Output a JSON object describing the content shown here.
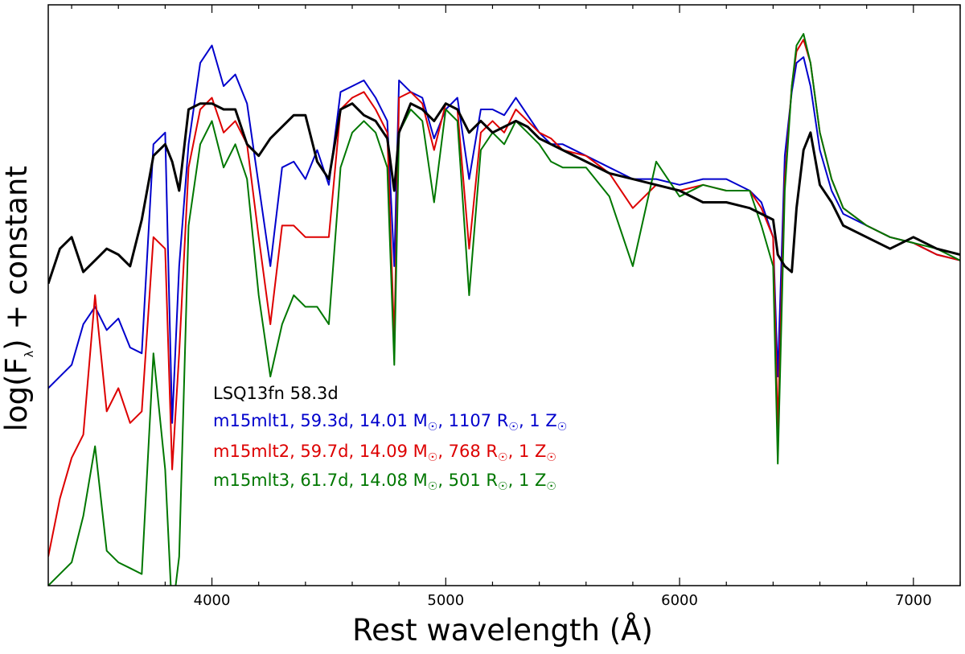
{
  "chart_data": {
    "type": "line",
    "xlabel": "Rest wavelength (Å)",
    "ylabel": "log(Fλ) + constant",
    "xlim": [
      3300,
      7200
    ],
    "ylim": [
      0,
      1
    ],
    "x_ticks": [
      "4000",
      "5000",
      "6000",
      "7000"
    ],
    "series": [
      {
        "name": "LSQ13fn 58.3d",
        "color": "#000000",
        "x": [
          3300,
          3350,
          3400,
          3450,
          3500,
          3550,
          3600,
          3650,
          3700,
          3750,
          3800,
          3830,
          3860,
          3900,
          3950,
          4000,
          4050,
          4100,
          4150,
          4200,
          4250,
          4300,
          4350,
          4400,
          4450,
          4500,
          4550,
          4600,
          4650,
          4700,
          4750,
          4780,
          4800,
          4850,
          4900,
          4950,
          5000,
          5050,
          5100,
          5150,
          5200,
          5250,
          5300,
          5350,
          5400,
          5450,
          5500,
          5600,
          5700,
          5800,
          5900,
          6000,
          6100,
          6200,
          6300,
          6350,
          6400,
          6420,
          6450,
          6480,
          6500,
          6530,
          6560,
          6600,
          6650,
          6700,
          6800,
          6900,
          7000,
          7100,
          7200
        ],
        "y": [
          0.52,
          0.58,
          0.6,
          0.54,
          0.56,
          0.58,
          0.57,
          0.55,
          0.63,
          0.74,
          0.76,
          0.73,
          0.68,
          0.82,
          0.83,
          0.83,
          0.82,
          0.82,
          0.76,
          0.74,
          0.77,
          0.79,
          0.81,
          0.81,
          0.73,
          0.7,
          0.82,
          0.83,
          0.81,
          0.8,
          0.77,
          0.68,
          0.78,
          0.83,
          0.82,
          0.8,
          0.83,
          0.82,
          0.78,
          0.8,
          0.78,
          0.79,
          0.8,
          0.79,
          0.77,
          0.76,
          0.75,
          0.73,
          0.71,
          0.7,
          0.69,
          0.68,
          0.66,
          0.66,
          0.65,
          0.64,
          0.63,
          0.57,
          0.55,
          0.54,
          0.65,
          0.75,
          0.78,
          0.69,
          0.66,
          0.62,
          0.6,
          0.58,
          0.6,
          0.58,
          0.57
        ]
      },
      {
        "name": "m15mlt1, 59.3d, 14.01 M☉, 1107 R☉, 1 Z☉",
        "color": "#0000cc",
        "x": [
          3300,
          3350,
          3400,
          3450,
          3500,
          3550,
          3600,
          3650,
          3700,
          3750,
          3800,
          3830,
          3860,
          3900,
          3950,
          4000,
          4050,
          4100,
          4150,
          4200,
          4250,
          4300,
          4350,
          4400,
          4450,
          4500,
          4550,
          4600,
          4650,
          4700,
          4750,
          4780,
          4800,
          4850,
          4900,
          4950,
          5000,
          5050,
          5100,
          5150,
          5200,
          5250,
          5300,
          5350,
          5400,
          5450,
          5500,
          5600,
          5700,
          5800,
          5900,
          6000,
          6100,
          6200,
          6300,
          6350,
          6400,
          6420,
          6450,
          6480,
          6500,
          6530,
          6560,
          6600,
          6650,
          6700,
          6800,
          6900,
          7000,
          7100,
          7200
        ],
        "y": [
          0.34,
          0.36,
          0.38,
          0.45,
          0.48,
          0.44,
          0.46,
          0.41,
          0.4,
          0.76,
          0.78,
          0.28,
          0.55,
          0.76,
          0.9,
          0.93,
          0.86,
          0.88,
          0.83,
          0.69,
          0.55,
          0.72,
          0.73,
          0.7,
          0.75,
          0.69,
          0.85,
          0.86,
          0.87,
          0.84,
          0.8,
          0.55,
          0.87,
          0.85,
          0.84,
          0.77,
          0.82,
          0.84,
          0.7,
          0.82,
          0.82,
          0.81,
          0.84,
          0.81,
          0.78,
          0.76,
          0.76,
          0.74,
          0.72,
          0.7,
          0.7,
          0.69,
          0.7,
          0.7,
          0.68,
          0.66,
          0.6,
          0.36,
          0.74,
          0.85,
          0.9,
          0.91,
          0.86,
          0.75,
          0.68,
          0.64,
          0.62,
          0.6,
          0.59,
          0.57,
          0.56
        ]
      },
      {
        "name": "m15mlt2, 59.7d, 14.09 M☉, 768 R☉, 1 Z☉",
        "color": "#dd0000",
        "x": [
          3300,
          3350,
          3400,
          3450,
          3500,
          3550,
          3600,
          3650,
          3700,
          3750,
          3800,
          3830,
          3860,
          3900,
          3950,
          4000,
          4050,
          4100,
          4150,
          4200,
          4250,
          4300,
          4350,
          4400,
          4450,
          4500,
          4550,
          4600,
          4650,
          4700,
          4750,
          4780,
          4800,
          4850,
          4900,
          4950,
          5000,
          5050,
          5100,
          5150,
          5200,
          5250,
          5300,
          5350,
          5400,
          5450,
          5500,
          5600,
          5700,
          5800,
          5900,
          6000,
          6100,
          6200,
          6300,
          6350,
          6400,
          6420,
          6450,
          6480,
          6500,
          6530,
          6560,
          6600,
          6650,
          6700,
          6800,
          6900,
          7000,
          7100,
          7200
        ],
        "y": [
          0.05,
          0.15,
          0.22,
          0.26,
          0.5,
          0.3,
          0.34,
          0.28,
          0.3,
          0.6,
          0.58,
          0.2,
          0.4,
          0.72,
          0.82,
          0.84,
          0.78,
          0.8,
          0.76,
          0.6,
          0.45,
          0.62,
          0.62,
          0.6,
          0.6,
          0.6,
          0.82,
          0.84,
          0.85,
          0.82,
          0.78,
          0.42,
          0.84,
          0.85,
          0.83,
          0.75,
          0.83,
          0.82,
          0.58,
          0.78,
          0.8,
          0.78,
          0.82,
          0.8,
          0.78,
          0.77,
          0.75,
          0.74,
          0.71,
          0.65,
          0.69,
          0.68,
          0.69,
          0.68,
          0.68,
          0.65,
          0.6,
          0.27,
          0.7,
          0.86,
          0.92,
          0.94,
          0.9,
          0.78,
          0.7,
          0.65,
          0.62,
          0.6,
          0.59,
          0.57,
          0.56
        ]
      },
      {
        "name": "m15mlt3, 61.7d, 14.08 M☉, 501 R☉, 1 Z☉",
        "color": "#007700",
        "x": [
          3300,
          3350,
          3400,
          3450,
          3500,
          3550,
          3600,
          3650,
          3700,
          3750,
          3800,
          3830,
          3860,
          3900,
          3950,
          4000,
          4050,
          4100,
          4150,
          4200,
          4250,
          4300,
          4350,
          4400,
          4450,
          4500,
          4550,
          4600,
          4650,
          4700,
          4750,
          4780,
          4800,
          4850,
          4900,
          4950,
          5000,
          5050,
          5100,
          5150,
          5200,
          5250,
          5300,
          5350,
          5400,
          5450,
          5500,
          5600,
          5700,
          5800,
          5900,
          6000,
          6100,
          6200,
          6300,
          6350,
          6400,
          6420,
          6450,
          6480,
          6500,
          6530,
          6560,
          6600,
          6650,
          6700,
          6800,
          6900,
          7000,
          7100,
          7200
        ],
        "y": [
          0.0,
          0.02,
          0.04,
          0.12,
          0.24,
          0.06,
          0.04,
          0.03,
          0.02,
          0.4,
          0.2,
          -0.1,
          0.05,
          0.62,
          0.76,
          0.8,
          0.72,
          0.76,
          0.7,
          0.5,
          0.36,
          0.45,
          0.5,
          0.48,
          0.48,
          0.45,
          0.72,
          0.78,
          0.8,
          0.78,
          0.72,
          0.38,
          0.78,
          0.82,
          0.8,
          0.66,
          0.82,
          0.8,
          0.5,
          0.75,
          0.78,
          0.76,
          0.8,
          0.78,
          0.76,
          0.73,
          0.72,
          0.72,
          0.67,
          0.55,
          0.73,
          0.67,
          0.69,
          0.68,
          0.68,
          0.62,
          0.55,
          0.21,
          0.68,
          0.86,
          0.93,
          0.95,
          0.9,
          0.78,
          0.7,
          0.65,
          0.62,
          0.6,
          0.59,
          0.58,
          0.56
        ]
      }
    ]
  },
  "legend": {
    "black_text": "LSQ13fn 58.3d",
    "blue": {
      "p1": "m15mlt1, 59.3d, 14.01 M",
      "p2": ", 1107 R",
      "p3": ", 1 Z"
    },
    "red": {
      "p1": "m15mlt2, 59.7d, 14.09 M",
      "p2": ", 768 R",
      "p3": ", 1 Z"
    },
    "green": {
      "p1": "m15mlt3, 61.7d, 14.08 M",
      "p2": ", 501 R",
      "p3": ", 1 Z"
    },
    "sun_symbol": "☉"
  },
  "axis_labels": {
    "y_main": "log(F",
    "y_sub": "λ",
    "y_tail": ") + constant",
    "x": "Rest wavelength (Å)"
  }
}
